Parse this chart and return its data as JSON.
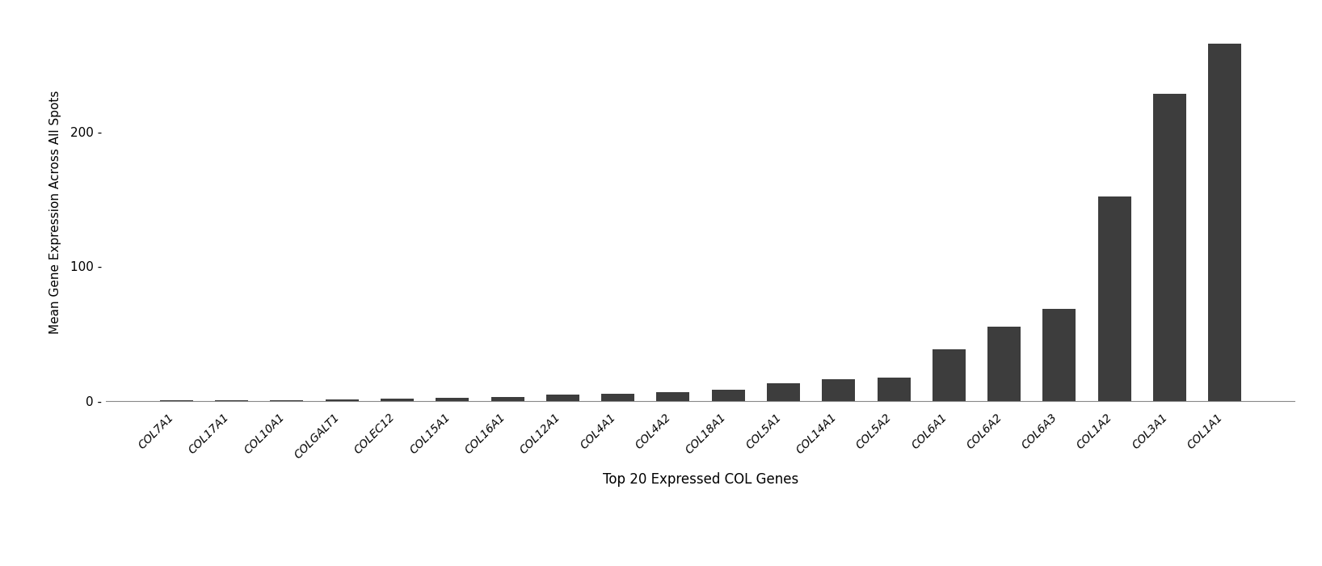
{
  "categories": [
    "COL7A1",
    "COL17A1",
    "COL10A1",
    "COLGALT1",
    "COLEC12",
    "COL15A1",
    "COL16A1",
    "COL12A1",
    "COL4A1",
    "COL4A2",
    "COL18A1",
    "COL5A1",
    "COL14A1",
    "COL5A2",
    "COL6A1",
    "COL6A2",
    "COL6A3",
    "COL1A2",
    "COL3A1",
    "COL1A1"
  ],
  "values": [
    0.3,
    0.4,
    0.5,
    0.8,
    1.5,
    2.5,
    3.0,
    4.5,
    5.5,
    6.5,
    8.0,
    13.0,
    16.0,
    17.0,
    38.0,
    55.0,
    68.0,
    152.0,
    228.0,
    265.0
  ],
  "bar_color": "#3d3d3d",
  "ylabel": "Mean Gene Expression Across All Spots",
  "xlabel": "Top 20 Expressed COL Genes",
  "ylim": [
    -5,
    285
  ],
  "yticks": [
    0,
    100,
    200
  ],
  "background_color": "#ffffff",
  "bar_edge_color": "none",
  "bar_width": 0.6,
  "xlabel_fontsize": 12,
  "ylabel_fontsize": 11,
  "xtick_fontsize": 10,
  "ytick_fontsize": 11
}
